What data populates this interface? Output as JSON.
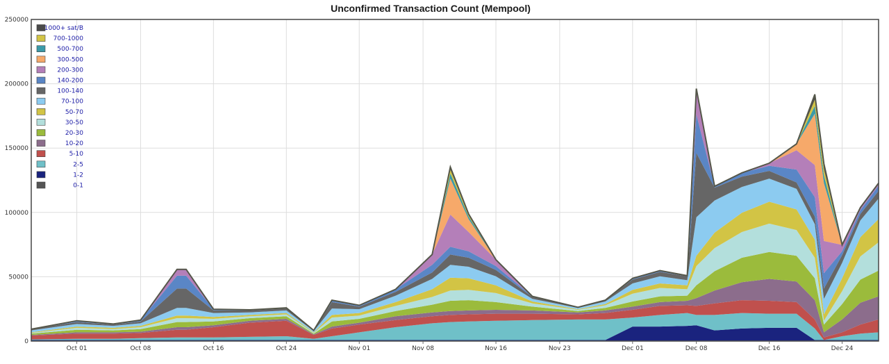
{
  "chart_data": {
    "type": "area",
    "title": "Unconfirmed Transaction Count (Mempool)",
    "xlabel": "",
    "ylabel": "",
    "ylim": [
      0,
      250000
    ],
    "yticks": [
      0,
      50000,
      100000,
      150000,
      200000,
      250000
    ],
    "ytick_labels": [
      "0",
      "50000",
      "100000",
      "150000",
      "200000",
      "250000"
    ],
    "xlim": [
      "Sep 26",
      "Dec 28"
    ],
    "xticks": [
      {
        "label": "Oct 01",
        "date": "Oct 01"
      },
      {
        "label": "Oct 08",
        "date": "Oct 08"
      },
      {
        "label": "Oct 16",
        "date": "Oct 16"
      },
      {
        "label": "Oct 24",
        "date": "Oct 24"
      },
      {
        "label": "Nov 01",
        "date": "Nov 01"
      },
      {
        "label": "Nov 08",
        "date": "Nov 08"
      },
      {
        "label": "Nov 16",
        "date": "Nov 16"
      },
      {
        "label": "Nov 23",
        "date": "Nov 23"
      },
      {
        "label": "Dec 01",
        "date": "Dec 01"
      },
      {
        "label": "Dec 08",
        "date": "Dec 08"
      },
      {
        "label": "Dec 16",
        "date": "Dec 16"
      },
      {
        "label": "Dec 24",
        "date": "Dec 24"
      }
    ],
    "grid": true,
    "stacked": true,
    "legend_position": "top-left",
    "x": [
      "Sep 26",
      "Oct 01",
      "Oct 05",
      "Oct 08",
      "Oct 12",
      "Oct 13",
      "Oct 16",
      "Oct 20",
      "Oct 24",
      "Oct 27",
      "Oct 29",
      "Nov 01",
      "Nov 05",
      "Nov 09",
      "Nov 11",
      "Nov 13",
      "Nov 16",
      "Nov 20",
      "Nov 25",
      "Nov 28",
      "Dec 01",
      "Dec 04",
      "Dec 07",
      "Dec 08",
      "Dec 10",
      "Dec 13",
      "Dec 16",
      "Dec 19",
      "Dec 21",
      "Dec 22",
      "Dec 24",
      "Dec 26",
      "Dec 28"
    ],
    "series": [
      {
        "name": "0-1",
        "color": "#555555",
        "values": [
          300,
          300,
          300,
          300,
          300,
          300,
          300,
          300,
          300,
          300,
          300,
          300,
          300,
          300,
          300,
          300,
          300,
          300,
          300,
          300,
          300,
          300,
          300,
          300,
          300,
          300,
          300,
          300,
          300,
          300,
          300,
          300,
          300
        ]
      },
      {
        "name": "1-2",
        "color": "#1a237e",
        "values": [
          500,
          500,
          500,
          500,
          500,
          500,
          500,
          500,
          500,
          500,
          500,
          500,
          500,
          500,
          500,
          500,
          500,
          500,
          500,
          500,
          11000,
          11000,
          11500,
          12000,
          8000,
          9500,
          10000,
          10000,
          500,
          500,
          500,
          500,
          500
        ]
      },
      {
        "name": "2-5",
        "color": "#6fc0c8",
        "values": [
          500,
          1000,
          1000,
          1500,
          2000,
          2000,
          2000,
          2500,
          3000,
          1000,
          3000,
          6000,
          10000,
          13000,
          14000,
          14500,
          15000,
          15500,
          16000,
          16000,
          7000,
          9000,
          10000,
          8000,
          12000,
          12000,
          11000,
          11000,
          9000,
          0,
          3000,
          5000,
          6000
        ]
      },
      {
        "name": "5-10",
        "color": "#c0504d",
        "values": [
          3000,
          4000,
          4000,
          4000,
          6000,
          6000,
          8000,
          11000,
          12000,
          3000,
          6000,
          6000,
          5500,
          5500,
          5500,
          5500,
          5500,
          5000,
          4000,
          5000,
          6000,
          7000,
          6000,
          7000,
          9000,
          10000,
          10000,
          9000,
          7000,
          2000,
          3000,
          7000,
          10000
        ]
      },
      {
        "name": "10-20",
        "color": "#8c6d8c",
        "values": [
          500,
          1000,
          1000,
          1000,
          2000,
          2000,
          1500,
          1500,
          1500,
          500,
          1500,
          1500,
          3000,
          3000,
          3000,
          3000,
          3000,
          2500,
          1500,
          2000,
          2500,
          3000,
          3500,
          6000,
          10000,
          14000,
          17000,
          16000,
          15000,
          4000,
          10000,
          17000,
          18000
        ]
      },
      {
        "name": "20-30",
        "color": "#9bbb3c",
        "values": [
          1000,
          2000,
          1500,
          2000,
          4000,
          4000,
          3000,
          2000,
          2000,
          500,
          4000,
          3000,
          4000,
          6000,
          8000,
          8000,
          6000,
          3000,
          1000,
          2000,
          4000,
          4500,
          4000,
          10000,
          15000,
          19000,
          21000,
          20000,
          17000,
          6000,
          12000,
          18000,
          20000
        ]
      },
      {
        "name": "30-50",
        "color": "#b3dfdc",
        "values": [
          500,
          1500,
          1000,
          1500,
          3000,
          3000,
          2000,
          1500,
          1500,
          500,
          3000,
          2500,
          4000,
          6000,
          8000,
          8000,
          7000,
          2500,
          1000,
          2000,
          6000,
          6500,
          5000,
          15000,
          18000,
          20000,
          22000,
          20000,
          16000,
          3000,
          10000,
          18000,
          22000
        ]
      },
      {
        "name": "50-70",
        "color": "#d2c445",
        "values": [
          500,
          1000,
          1000,
          1000,
          2000,
          2000,
          1500,
          1000,
          1000,
          500,
          2000,
          2000,
          3000,
          6000,
          10000,
          9000,
          6000,
          1500,
          500,
          1000,
          3000,
          3500,
          3000,
          8000,
          12000,
          15000,
          17000,
          16000,
          14000,
          5000,
          10000,
          15000,
          18000
        ]
      },
      {
        "name": "70-100",
        "color": "#8ccbf0",
        "values": [
          1500,
          2000,
          1500,
          2000,
          6000,
          6000,
          3000,
          2000,
          2000,
          1000,
          5000,
          3000,
          5000,
          8000,
          10000,
          9000,
          7000,
          2000,
          1000,
          2000,
          5000,
          5500,
          4000,
          30000,
          25000,
          20000,
          18000,
          16000,
          12000,
          12000,
          12000,
          13000,
          16000
        ]
      },
      {
        "name": "100-140",
        "color": "#666666",
        "values": [
          1000,
          1500,
          1000,
          1500,
          15000,
          15000,
          2000,
          1500,
          1500,
          500,
          5000,
          2000,
          3000,
          5000,
          8000,
          7000,
          5000,
          1500,
          500,
          1000,
          3000,
          3500,
          3000,
          50000,
          10000,
          8000,
          6000,
          5000,
          6000,
          8000,
          6000,
          5000,
          6000
        ]
      },
      {
        "name": "140-200",
        "color": "#5a86c6",
        "values": [
          0,
          1000,
          500,
          1000,
          10000,
          10000,
          1000,
          500,
          500,
          0,
          1500,
          1000,
          2000,
          6000,
          6000,
          5000,
          3000,
          500,
          0,
          0,
          1000,
          1000,
          500,
          30000,
          1000,
          3000,
          4000,
          10000,
          15000,
          12000,
          3000,
          3000,
          4000
        ]
      },
      {
        "name": "200-300",
        "color": "#b47fb9",
        "values": [
          0,
          0,
          0,
          0,
          5000,
          5000,
          0,
          0,
          0,
          0,
          0,
          0,
          0,
          8000,
          25000,
          15000,
          5000,
          0,
          0,
          0,
          0,
          0,
          0,
          20000,
          0,
          0,
          2000,
          15000,
          25000,
          25000,
          5000,
          2000,
          2000
        ]
      },
      {
        "name": "300-500",
        "color": "#f6a96a",
        "values": [
          0,
          0,
          0,
          0,
          0,
          0,
          0,
          0,
          0,
          0,
          0,
          0,
          0,
          0,
          28000,
          10000,
          0,
          0,
          0,
          0,
          0,
          0,
          0,
          0,
          0,
          0,
          0,
          5000,
          40000,
          45000,
          0,
          0,
          0
        ]
      },
      {
        "name": "500-700",
        "color": "#3a9aa8",
        "values": [
          0,
          0,
          0,
          0,
          0,
          0,
          0,
          0,
          0,
          0,
          0,
          0,
          0,
          0,
          4000,
          2000,
          0,
          0,
          0,
          0,
          0,
          0,
          0,
          0,
          0,
          0,
          0,
          0,
          6000,
          6000,
          0,
          0,
          0
        ]
      },
      {
        "name": "700-1000",
        "color": "#d2c445",
        "values": [
          0,
          0,
          0,
          0,
          0,
          0,
          0,
          0,
          0,
          0,
          0,
          0,
          0,
          0,
          3000,
          1000,
          0,
          0,
          0,
          0,
          0,
          0,
          0,
          0,
          0,
          0,
          0,
          0,
          5000,
          5000,
          0,
          0,
          0
        ]
      },
      {
        "name": "1000+ sat/B",
        "color": "#4a4a4a",
        "values": [
          0,
          0,
          0,
          0,
          0,
          0,
          0,
          0,
          0,
          0,
          0,
          0,
          0,
          0,
          2000,
          1000,
          0,
          0,
          0,
          0,
          0,
          0,
          0,
          0,
          0,
          0,
          0,
          0,
          4000,
          4000,
          0,
          0,
          0
        ]
      }
    ]
  }
}
